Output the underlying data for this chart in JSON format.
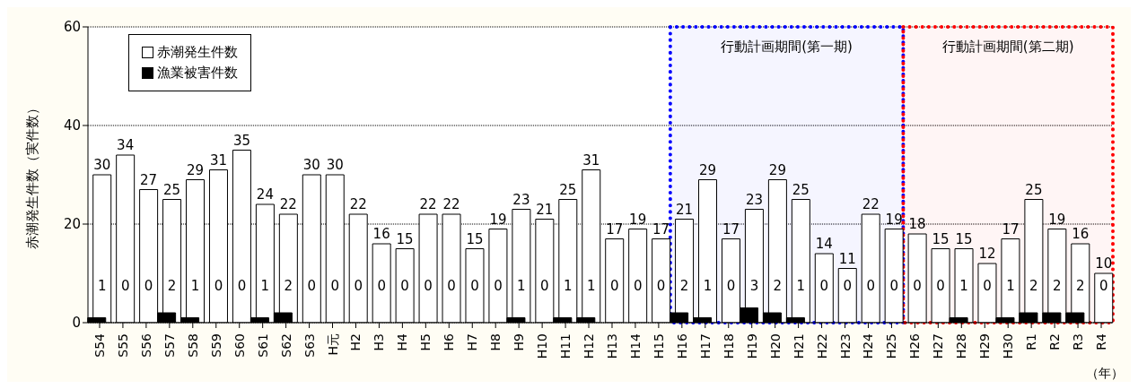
{
  "chart_data": {
    "type": "bar",
    "ylabel": "赤潮発生件数（実件数）",
    "xlabel": "（年）",
    "categories": [
      "S54",
      "S55",
      "S56",
      "S57",
      "S58",
      "S59",
      "S60",
      "S61",
      "S62",
      "S63",
      "H元",
      "H2",
      "H3",
      "H4",
      "H5",
      "H6",
      "H7",
      "H8",
      "H9",
      "H10",
      "H11",
      "H12",
      "H13",
      "H14",
      "H15",
      "H16",
      "H17",
      "H18",
      "H19",
      "H20",
      "H21",
      "H22",
      "H23",
      "H24",
      "H25",
      "H26",
      "H27",
      "H28",
      "H29",
      "H30",
      "R1",
      "R2",
      "R3",
      "R4"
    ],
    "series": [
      {
        "name": "赤潮発生件数",
        "color": "#ffffff",
        "values": [
          30,
          34,
          27,
          25,
          29,
          31,
          35,
          24,
          22,
          30,
          30,
          22,
          16,
          15,
          22,
          22,
          15,
          19,
          23,
          21,
          25,
          31,
          17,
          19,
          17,
          21,
          29,
          17,
          23,
          29,
          25,
          14,
          11,
          22,
          19,
          18,
          15,
          15,
          12,
          17,
          25,
          19,
          16,
          10
        ]
      },
      {
        "name": "漁業被害件数",
        "color": "#000000",
        "values": [
          1,
          0,
          0,
          2,
          1,
          0,
          0,
          1,
          2,
          0,
          0,
          0,
          0,
          0,
          0,
          0,
          0,
          0,
          1,
          0,
          1,
          1,
          0,
          0,
          0,
          2,
          1,
          0,
          3,
          2,
          1,
          0,
          0,
          0,
          0,
          0,
          0,
          1,
          0,
          1,
          2,
          2,
          2,
          0
        ]
      }
    ],
    "ylim": [
      0,
      60
    ],
    "yticks": [
      0,
      20,
      40,
      60
    ],
    "grid": "y",
    "legend": "top left",
    "data_labels": true,
    "bands": [
      {
        "axis": "x",
        "from": "H16",
        "to": "H25",
        "label": "行動計画期間(第一期)",
        "color": "#0000ff"
      },
      {
        "axis": "x",
        "from": "H26",
        "to": "R4",
        "label": "行動計画期間(第二期)",
        "color": "#ff0000"
      }
    ]
  }
}
